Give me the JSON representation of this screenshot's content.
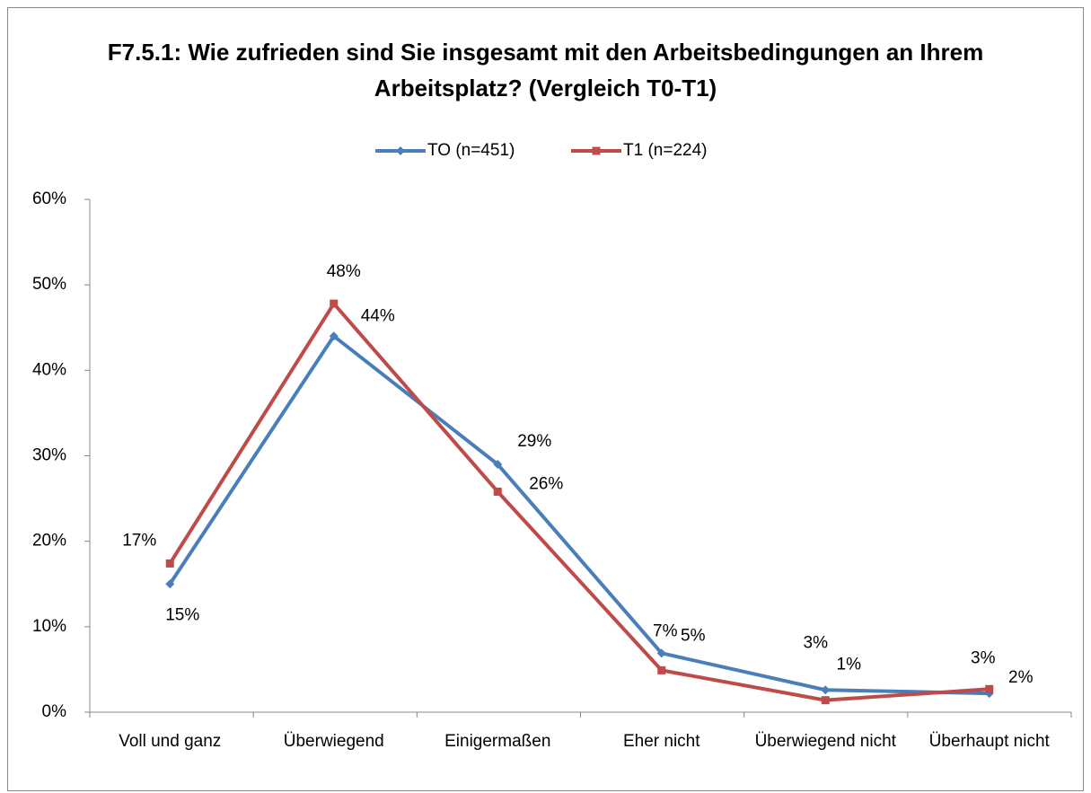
{
  "chart_data": {
    "type": "line",
    "title": "F7.5.1: Wie zufrieden sind Sie insgesamt mit den Arbeitsbedingungen an Ihrem Arbeitsplatz? (Vergleich T0-T1)",
    "categories": [
      "Voll und ganz",
      "Überwiegend",
      "Einigermaßen",
      "Eher nicht",
      "Überwiegend nicht",
      "Überhaupt nicht"
    ],
    "series": [
      {
        "name": "TO (n=451)",
        "color": "#4a7ebb",
        "marker": "diamond",
        "values": [
          15,
          44,
          29,
          6.9,
          2.6,
          2.2
        ],
        "value_labels": [
          "15%",
          "44%",
          "29%",
          "7%",
          "3%",
          "2%"
        ]
      },
      {
        "name": "T1 (n=224)",
        "color": "#be4b48",
        "marker": "square",
        "values": [
          17.4,
          47.8,
          25.8,
          4.9,
          1.4,
          2.7
        ],
        "value_labels": [
          "17%",
          "48%",
          "26%",
          "5%",
          "1%",
          "3%"
        ]
      }
    ],
    "ylim": [
      0,
      60
    ],
    "yticks": [
      {
        "value": 0,
        "label": "0%"
      },
      {
        "value": 10,
        "label": "10%"
      },
      {
        "value": 20,
        "label": "20%"
      },
      {
        "value": 30,
        "label": "30%"
      },
      {
        "value": 40,
        "label": "40%"
      },
      {
        "value": 50,
        "label": "50%"
      },
      {
        "value": 60,
        "label": "60%"
      }
    ],
    "grid": false,
    "legend": "top"
  }
}
